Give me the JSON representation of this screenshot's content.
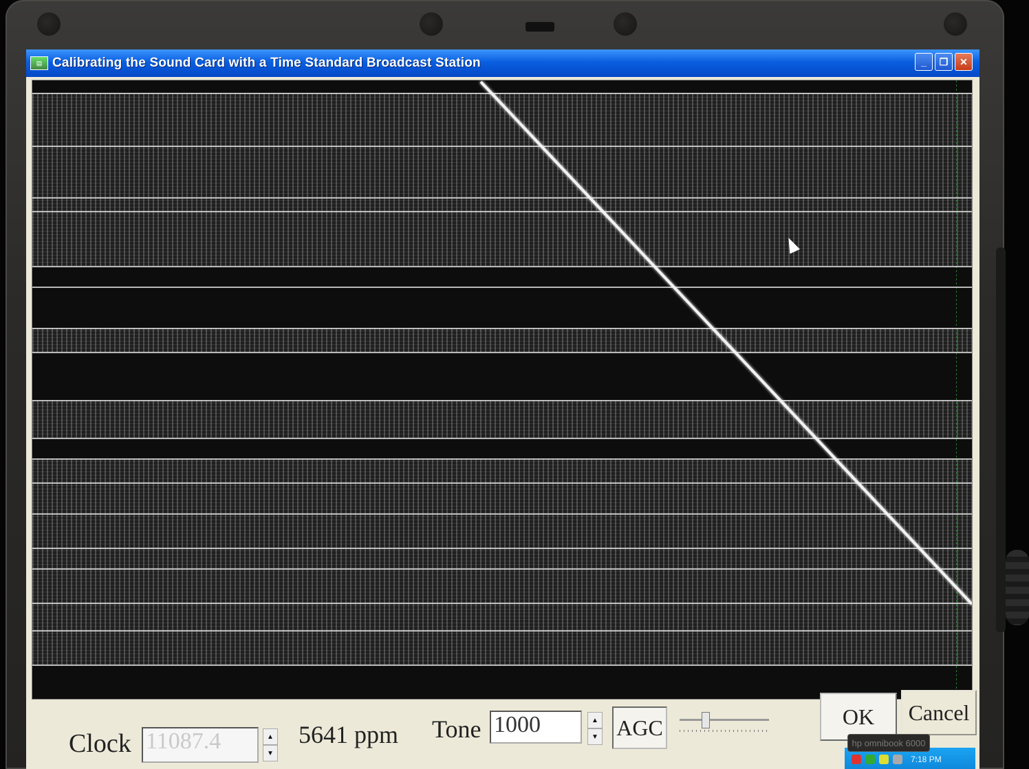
{
  "window": {
    "title": "Calibrating the Sound Card with a Time Standard Broadcast Station",
    "icon": "app-icon",
    "buttons": [
      "minimize-icon",
      "restore-icon",
      "close-icon"
    ]
  },
  "controls": {
    "clock_label": "Clock",
    "clock_value": "11087.4",
    "ppm_text": "5641 ppm",
    "tone_label": "Tone",
    "tone_value": "1000",
    "agc_label": "AGC",
    "ok_label": "OK",
    "cancel_label": "Cancel"
  },
  "tray": {
    "time": "7:18 PM"
  },
  "laptop": {
    "badge": "hp omnibook 6000"
  },
  "colors": {
    "titlebar": "#0a5fe0",
    "display_bg": "#0b0b0b",
    "trace": "#f2f2f2",
    "window_bg": "#ece9d8"
  }
}
